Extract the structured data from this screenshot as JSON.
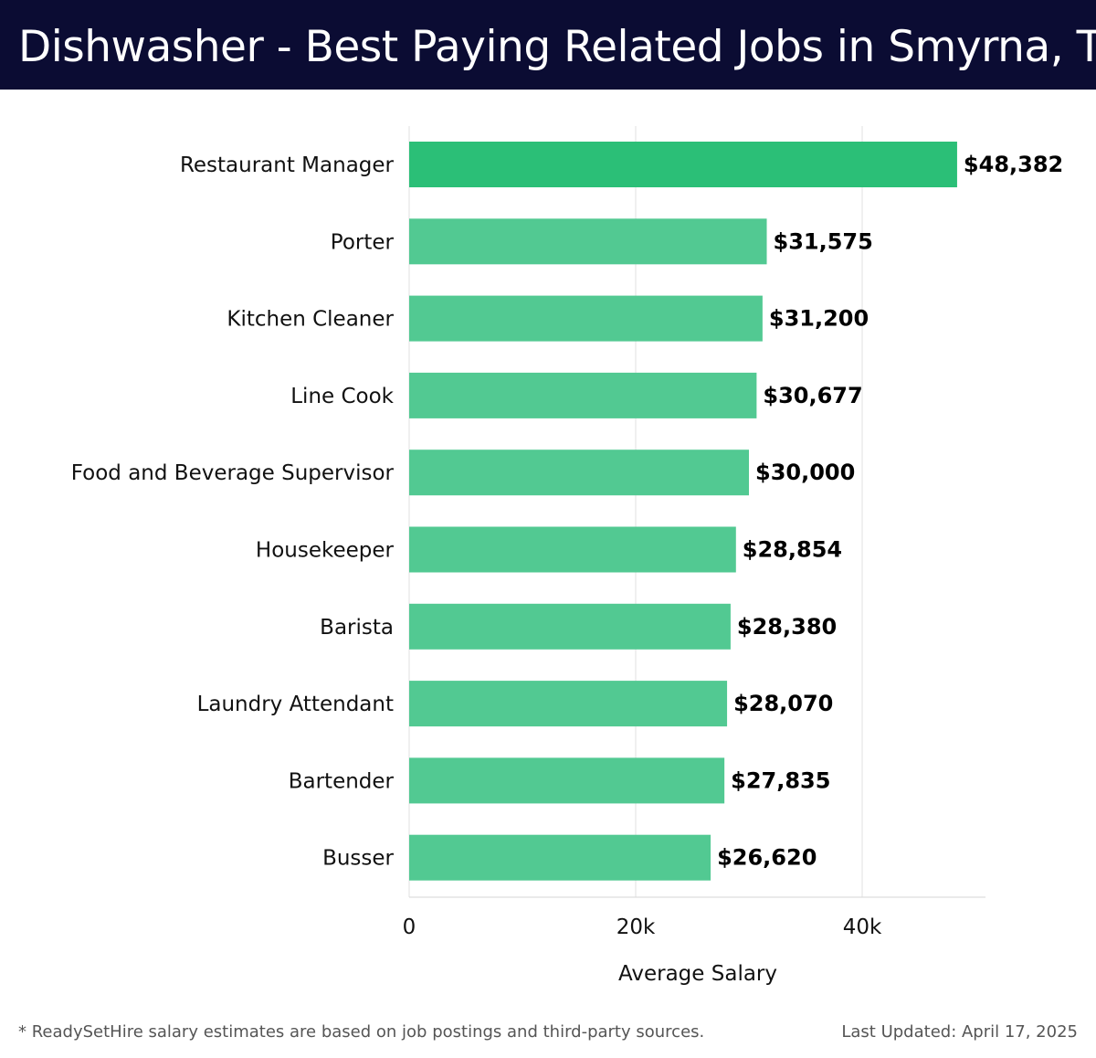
{
  "header": {
    "title": "Dishwasher - Best Paying Related Jobs in Smyrna, TN"
  },
  "chart_data": {
    "type": "bar",
    "orientation": "horizontal",
    "title": "Dishwasher - Best Paying Related Jobs in Smyrna, TN",
    "xlabel": "Average Salary",
    "ylabel": "",
    "xlim": [
      0,
      51000
    ],
    "x_ticks": [
      0,
      20000,
      40000
    ],
    "x_tick_labels": [
      "0",
      "20k",
      "40k"
    ],
    "grid": true,
    "categories": [
      "Restaurant Manager",
      "Porter",
      "Kitchen Cleaner",
      "Line Cook",
      "Food and Beverage Supervisor",
      "Housekeeper",
      "Barista",
      "Laundry Attendant",
      "Bartender",
      "Busser"
    ],
    "values": [
      48382,
      31575,
      31200,
      30677,
      30000,
      28854,
      28380,
      28070,
      27835,
      26620
    ],
    "value_labels": [
      "$48,382",
      "$31,575",
      "$31,200",
      "$30,677",
      "$30,000",
      "$28,854",
      "$28,380",
      "$28,070",
      "$27,835",
      "$26,620"
    ],
    "colors": {
      "highlight": "#2bbf77",
      "bar": "#52c992"
    }
  },
  "footer": {
    "note": "* ReadySetHire salary estimates are based on job postings and third-party sources.",
    "updated": "Last Updated: April 17, 2025"
  }
}
